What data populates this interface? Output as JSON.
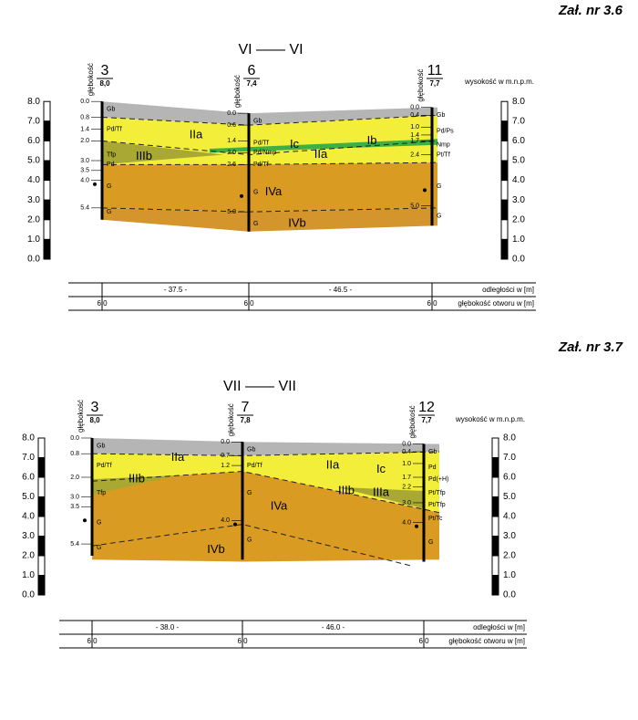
{
  "sections": [
    {
      "attachment": "Zał. nr 3.6",
      "title": "VI —— VI",
      "elevation_label": "wysokość w m.n.p.m.",
      "scale": [
        "8.0",
        "7.0",
        "6.0",
        "5.0",
        "4.0",
        "3.0",
        "2.0",
        "1.0",
        "0.0"
      ],
      "boreholes": [
        {
          "number": "3",
          "elevation": "8,0",
          "depth_label": "głębokość",
          "depths": [
            "0.0",
            "0.8",
            "1.4",
            "2.0",
            "3.0",
            "3.5",
            "4.0",
            "5.4"
          ],
          "soils": [
            "Gb",
            "Pd/Tf",
            "Tfp",
            "Pd",
            "G",
            "G"
          ]
        },
        {
          "number": "6",
          "elevation": "7,4",
          "depth_label": "głębokość",
          "depths": [
            "0.0",
            "0.6",
            "1.4",
            "2.0",
            "2.6",
            "5.0"
          ],
          "soils": [
            "Gb",
            "Pd/Tf",
            "Pd/Nmp",
            "Pd/Tf",
            "G",
            "G"
          ]
        },
        {
          "number": "11",
          "elevation": "7,7",
          "depth_label": "głębokość",
          "depths": [
            "0.0",
            "0.4",
            "1.0",
            "1.4",
            "1.7",
            "2.4",
            "5.0"
          ],
          "soils": [
            "Gb",
            "Pd/Ps",
            "Nmp",
            "Pt/Tf",
            "G",
            "G"
          ]
        }
      ],
      "layers": [
        "IIa",
        "Ib",
        "Ic",
        "IIa",
        "IIIb",
        "IVa",
        "IVb"
      ],
      "distances": [
        "- 37.5 -",
        "- 46.5 -"
      ],
      "distance_label": "odległości w [m]",
      "bore_depths": [
        "6,0",
        "6,0",
        "6,0"
      ],
      "bore_depth_label": "głębokość otworu w [m]"
    },
    {
      "attachment": "Zał. nr 3.7",
      "title": "VII —— VII",
      "elevation_label": "wysokość w m.n.p.m.",
      "scale": [
        "8.0",
        "7.0",
        "6.0",
        "5.0",
        "4.0",
        "3.0",
        "2.0",
        "1.0",
        "0.0"
      ],
      "boreholes": [
        {
          "number": "3",
          "elevation": "8,0",
          "depth_label": "głębokość",
          "depths": [
            "0.0",
            "0.8",
            "2.0",
            "3.0",
            "3.5",
            "5.4"
          ],
          "soils": [
            "Gb",
            "Pd/Tf",
            "Tfp",
            "G",
            "G"
          ]
        },
        {
          "number": "7",
          "elevation": "7,8",
          "depth_label": "głębokość",
          "depths": [
            "0.0",
            "0.7",
            "1.2",
            "4.0"
          ],
          "soils": [
            "Gb",
            "Pd/Tf",
            "G",
            "G"
          ]
        },
        {
          "number": "12",
          "elevation": "7,7",
          "depth_label": "głębokość",
          "depths": [
            "0.0",
            "0.4",
            "1.0",
            "1.7",
            "2.2",
            "3.0",
            "4.0"
          ],
          "soils": [
            "Gb",
            "Pd",
            "Pd(+H)",
            "Pt/Tfp",
            "Pt/Tfp",
            "Pt/Tc",
            "G"
          ]
        }
      ],
      "layers": [
        "IIa",
        "IIIb",
        "IIa",
        "Ic",
        "IIIb",
        "IIIa",
        "IVa",
        "IVb"
      ],
      "distances": [
        "- 38.0 -",
        "- 46.0 -"
      ],
      "distance_label": "odległości w [m]",
      "bore_depths": [
        "6,0",
        "6,0",
        "6,0"
      ],
      "bore_depth_label": "głębokość otworu w [m]"
    }
  ]
}
